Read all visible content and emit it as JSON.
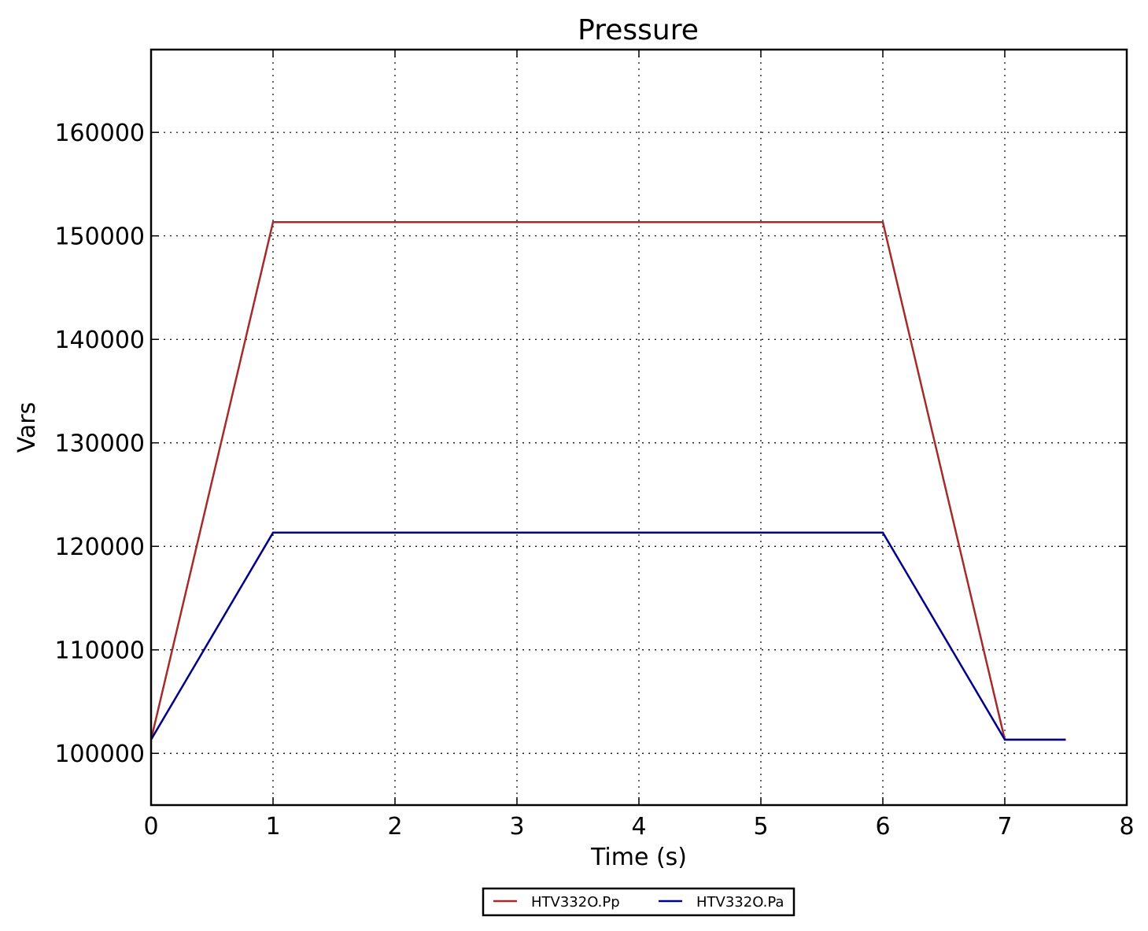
{
  "chart_data": {
    "type": "line",
    "title": "Pressure",
    "xlabel": "Time (s)",
    "ylabel": "Vars",
    "xlim": [
      0,
      8
    ],
    "ylim": [
      95000,
      168000
    ],
    "xticks": [
      0,
      1,
      2,
      3,
      4,
      5,
      6,
      7,
      8
    ],
    "yticks": [
      100000,
      110000,
      120000,
      130000,
      140000,
      150000,
      160000
    ],
    "grid": true,
    "legend_position": "bottom-center",
    "series": [
      {
        "name": "HTV332O.Pp",
        "color": "#a52a2a",
        "x": [
          0,
          1,
          6,
          7,
          7.5
        ],
        "y": [
          101325,
          151325,
          151325,
          101325,
          101325
        ]
      },
      {
        "name": "HTV332O.Pa",
        "color": "#00008b",
        "x": [
          0,
          1,
          6,
          7,
          7.5
        ],
        "y": [
          101325,
          121325,
          121325,
          101325,
          101325
        ]
      }
    ]
  }
}
